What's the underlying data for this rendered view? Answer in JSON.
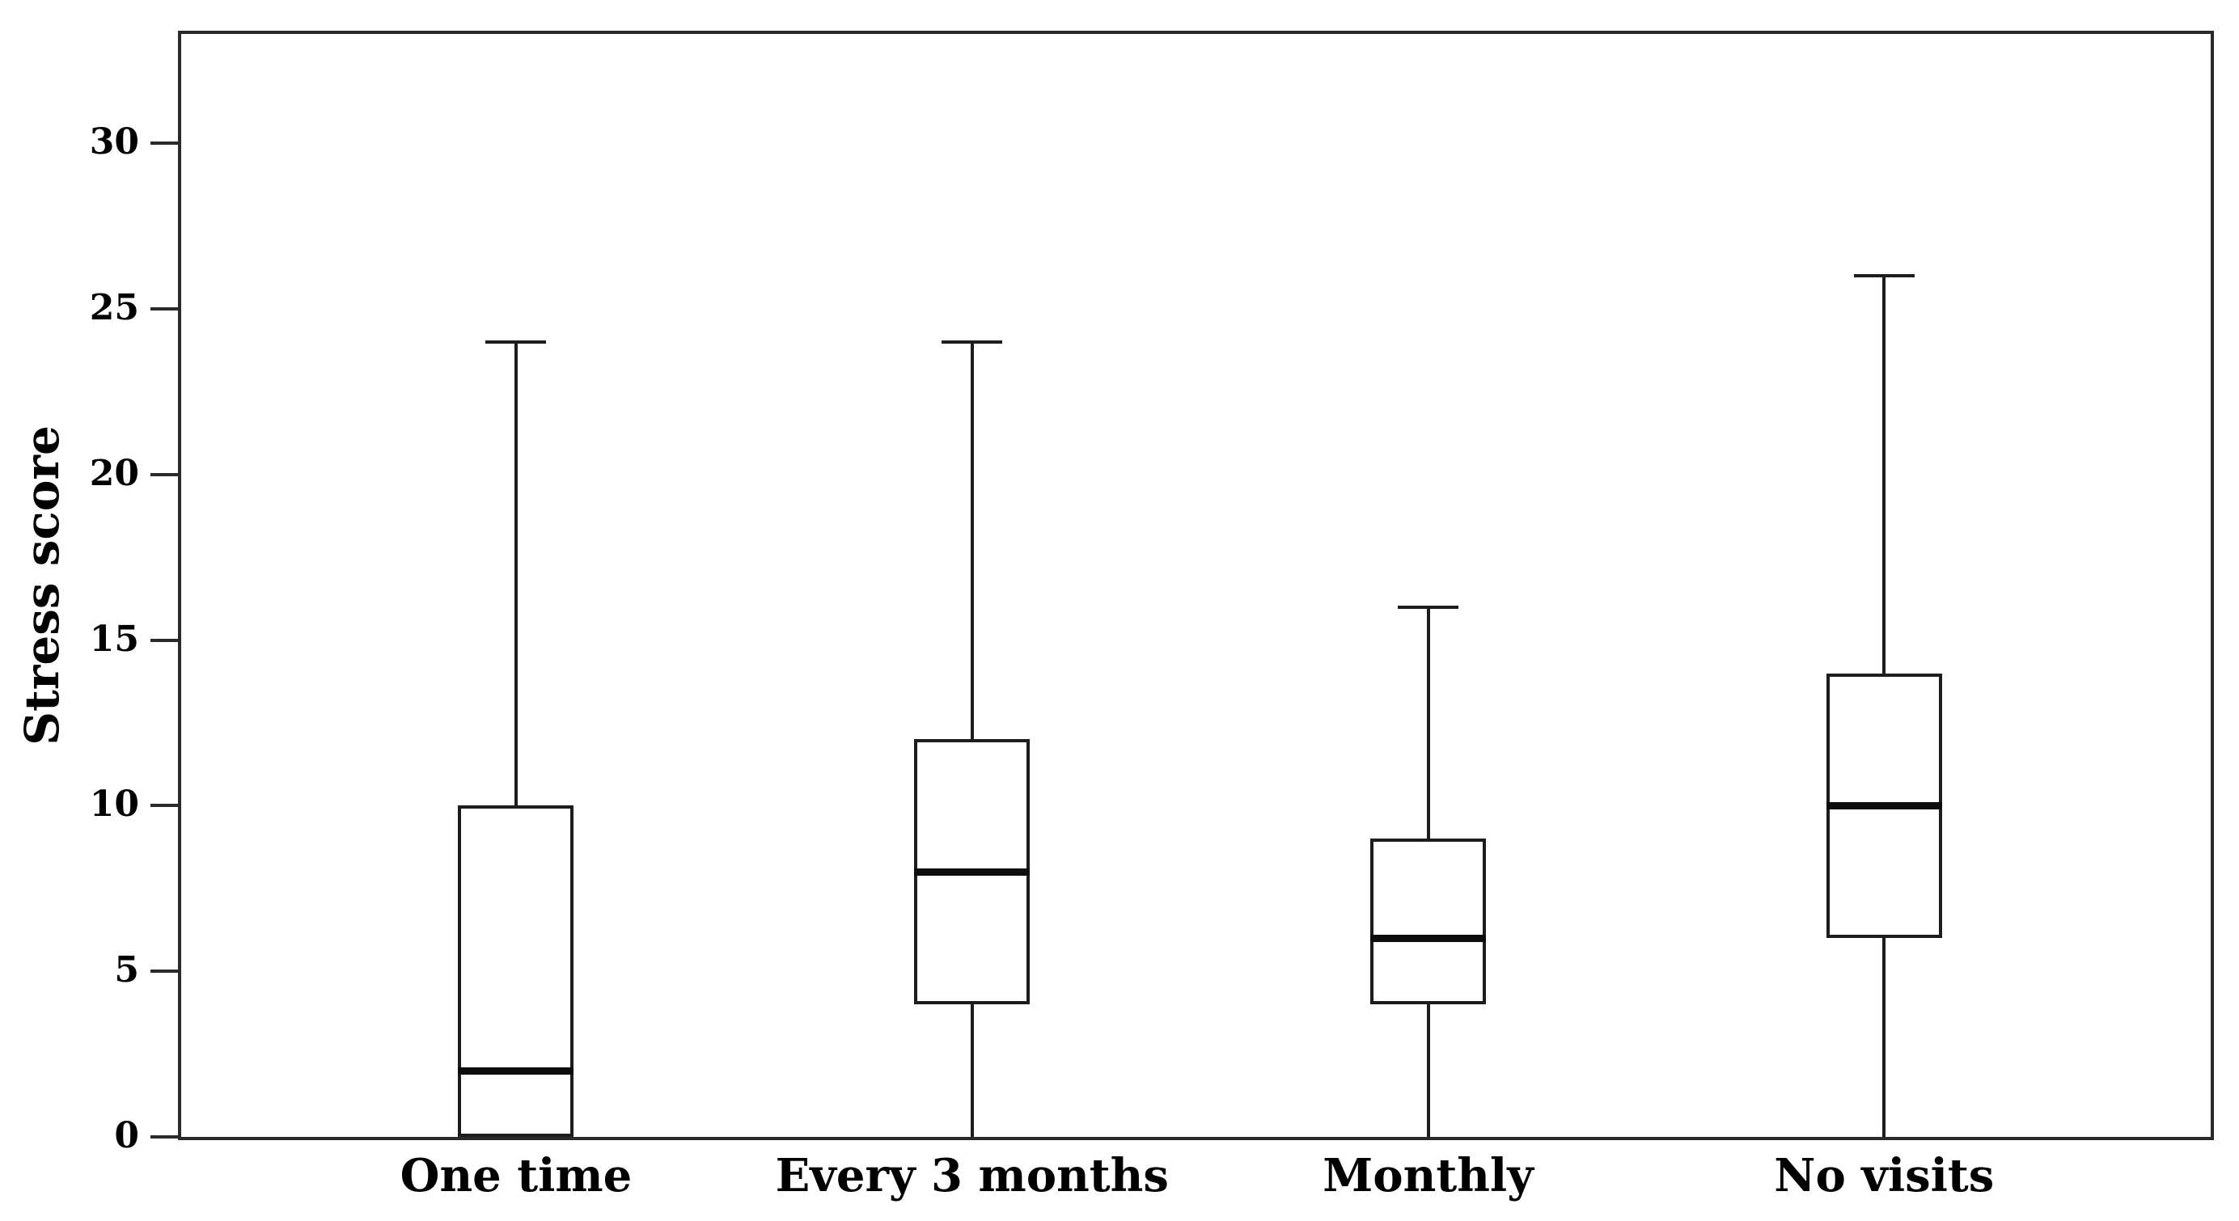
{
  "chart_data": {
    "type": "boxplot",
    "title": "",
    "ylabel": "Stress score",
    "xlabel": "",
    "ylim": [
      0,
      33.3
    ],
    "yticks": [
      0,
      5,
      10,
      15,
      20,
      25,
      30
    ],
    "grid": false,
    "legend_position": "none",
    "categories": [
      "One time",
      "Every 3 months",
      "Monthly",
      "No visits"
    ],
    "series": [
      {
        "name": "One time",
        "min": 0,
        "q1": 0,
        "median": 2,
        "q3": 10,
        "max": 24,
        "outliers": []
      },
      {
        "name": "Every 3 months",
        "min": 0,
        "q1": 4,
        "median": 8,
        "q3": 12,
        "max": 24,
        "outliers": []
      },
      {
        "name": "Monthly",
        "min": 0,
        "q1": 4,
        "median": 6,
        "q3": 9,
        "max": 16,
        "outliers": []
      },
      {
        "name": "No visits",
        "min": 0,
        "q1": 6,
        "median": 10,
        "q3": 14,
        "max": 26,
        "outliers": []
      }
    ],
    "line_color": "#1d1d1d",
    "median_color": "#0d0d0d",
    "frame_color": "#2a2a2a",
    "background": "#ffffff"
  }
}
